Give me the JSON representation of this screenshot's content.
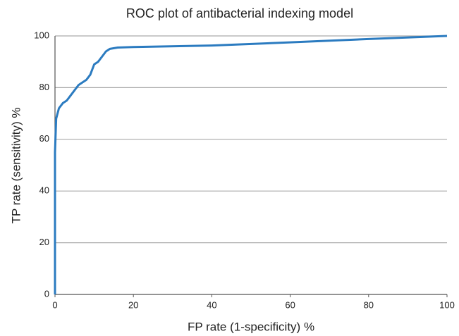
{
  "chart_data": {
    "type": "line",
    "title": "ROC plot of antibacterial indexing model",
    "x_label": "FP rate (1-specificity) %",
    "y_label": "TP rate (sensitivity) %",
    "series": [
      {
        "color": "#2b7bc0",
        "x": [
          0,
          0,
          0.3,
          1,
          2,
          3,
          4,
          5,
          6,
          7,
          8,
          9,
          10,
          11,
          12,
          13,
          14,
          16,
          20,
          40,
          60,
          80,
          100
        ],
        "values": [
          0,
          55,
          68,
          72,
          74,
          75,
          77,
          79,
          81,
          82,
          83,
          85,
          89,
          90,
          92,
          94,
          95,
          95.5,
          95.7,
          96.3,
          97.5,
          98.8,
          100
        ]
      }
    ],
    "xlim": [
      0,
      100
    ],
    "xticks": [
      0,
      20,
      40,
      60,
      80,
      100
    ],
    "ylim": [
      0,
      100
    ],
    "yticks": [
      0,
      20,
      40,
      60,
      80,
      100
    ],
    "grid": true
  }
}
